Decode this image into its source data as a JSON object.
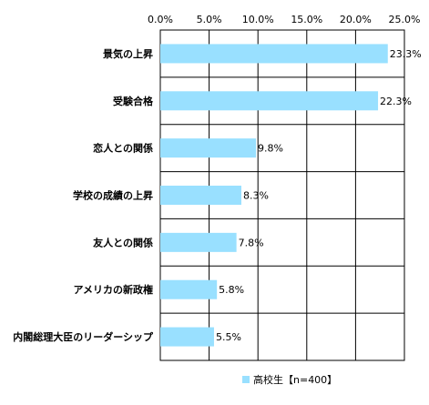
{
  "chart_data": {
    "type": "bar",
    "orientation": "horizontal",
    "categories": [
      "景気の上昇",
      "受験合格",
      "恋人との関係",
      "学校の成績の上昇",
      "友人との関係",
      "アメリカの新政権",
      "内閣総理大臣のリーダーシップ"
    ],
    "series": [
      {
        "name": "高校生【n=400】",
        "values": [
          23.3,
          22.3,
          9.8,
          8.3,
          7.8,
          5.8,
          5.5
        ]
      }
    ],
    "data_labels": [
      "23.3%",
      "22.3%",
      "9.8%",
      "8.3%",
      "7.8%",
      "5.8%",
      "5.5%"
    ],
    "xlim": [
      0,
      25
    ],
    "x_ticks": [
      "0.0%",
      "5.0%",
      "10.0%",
      "15.0%",
      "20.0%",
      "25.0%"
    ],
    "x_tick_values": [
      0,
      5,
      10,
      15,
      20,
      25
    ],
    "grid": true,
    "legend_position": "bottom-right",
    "bar_color": "#99E0FF"
  }
}
